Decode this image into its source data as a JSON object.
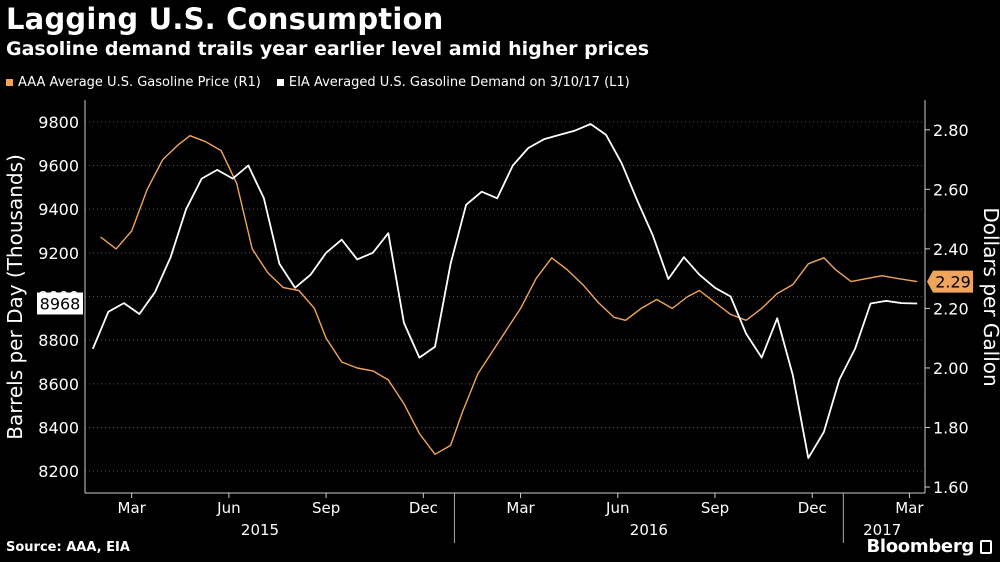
{
  "title": "Lagging U.S. Consumption",
  "subtitle": "Gasoline demand trails year earlier level amid higher prices",
  "legend": [
    {
      "label": "AAA Average U.S. Gasoline Price (R1)",
      "color": "#f0a55b"
    },
    {
      "label": "EIA Averaged U.S. Gasoline Demand on 3/10/17 (L1)",
      "color": "#ffffff"
    }
  ],
  "source": "Source: AAA, EIA",
  "brand": "Bloomberg",
  "chart_data": {
    "type": "line",
    "x_ticks": [
      "Mar",
      "Jun",
      "Sep",
      "Dec",
      "Mar",
      "Jun",
      "Sep",
      "Dec",
      "Mar"
    ],
    "x_years": [
      "2015",
      "2016",
      "2017"
    ],
    "left_axis": {
      "label": "Barrels per Day (Thousands)",
      "ticks": [
        "8200",
        "8400",
        "8600",
        "8800",
        "9000",
        "9200",
        "9400",
        "9600",
        "9800"
      ],
      "range": [
        8100,
        9900
      ]
    },
    "right_axis": {
      "label": "Dollars per Gallon",
      "ticks": [
        "1.60",
        "1.80",
        "2.00",
        "2.20",
        "2.40",
        "2.60",
        "2.80"
      ],
      "range": [
        1.58,
        2.9
      ]
    },
    "grid": true,
    "last_value_labels": {
      "demand": "8968",
      "price": "2.29"
    },
    "series": [
      {
        "name": "AAA Average U.S. Gasoline Price (R1)",
        "axis": "right",
        "color": "#f0a55b",
        "x": [
          2015.09,
          2015.13,
          2015.17,
          2015.21,
          2015.25,
          2015.29,
          2015.32,
          2015.36,
          2015.4,
          2015.44,
          2015.48,
          2015.52,
          2015.56,
          2015.6,
          2015.64,
          2015.67,
          2015.71,
          2015.75,
          2015.79,
          2015.83,
          2015.87,
          2015.91,
          2015.95,
          2015.99,
          2016.02,
          2016.06,
          2016.1,
          2016.13,
          2016.17,
          2016.21,
          2016.25,
          2016.29,
          2016.33,
          2016.37,
          2016.41,
          2016.44,
          2016.48,
          2016.52,
          2016.56,
          2016.6,
          2016.63,
          2016.67,
          2016.71,
          2016.75,
          2016.79,
          2016.83,
          2016.87,
          2016.91,
          2016.95,
          2016.98,
          2017.02,
          2017.06,
          2017.1,
          2017.14,
          2017.19
        ],
        "values": [
          2.44,
          2.4,
          2.46,
          2.6,
          2.7,
          2.75,
          2.78,
          2.76,
          2.73,
          2.62,
          2.4,
          2.32,
          2.27,
          2.26,
          2.2,
          2.1,
          2.02,
          2.0,
          1.99,
          1.96,
          1.88,
          1.78,
          1.71,
          1.74,
          1.85,
          1.98,
          2.06,
          2.12,
          2.2,
          2.3,
          2.37,
          2.33,
          2.28,
          2.22,
          2.17,
          2.16,
          2.2,
          2.23,
          2.2,
          2.24,
          2.26,
          2.22,
          2.18,
          2.16,
          2.2,
          2.25,
          2.28,
          2.35,
          2.37,
          2.33,
          2.29,
          2.3,
          2.31,
          2.3,
          2.29
        ]
      },
      {
        "name": "EIA Averaged U.S. Gasoline Demand on 3/10/17 (L1)",
        "axis": "left",
        "color": "#ffffff",
        "x": [
          2015.07,
          2015.11,
          2015.15,
          2015.19,
          2015.23,
          2015.27,
          2015.31,
          2015.35,
          2015.39,
          2015.43,
          2015.47,
          2015.51,
          2015.55,
          2015.59,
          2015.63,
          2015.67,
          2015.71,
          2015.75,
          2015.79,
          2015.83,
          2015.87,
          2015.91,
          2015.95,
          2015.99,
          2016.03,
          2016.07,
          2016.11,
          2016.15,
          2016.19,
          2016.23,
          2016.27,
          2016.31,
          2016.35,
          2016.39,
          2016.43,
          2016.47,
          2016.51,
          2016.55,
          2016.59,
          2016.63,
          2016.67,
          2016.71,
          2016.75,
          2016.79,
          2016.83,
          2016.87,
          2016.91,
          2016.95,
          2016.99,
          2017.03,
          2017.07,
          2017.11,
          2017.15,
          2017.19
        ],
        "values": [
          8760,
          8930,
          8970,
          8920,
          9020,
          9180,
          9400,
          9540,
          9580,
          9540,
          9600,
          9450,
          9150,
          9040,
          9100,
          9200,
          9260,
          9170,
          9200,
          9290,
          8880,
          8720,
          8770,
          9150,
          9420,
          9480,
          9450,
          9600,
          9680,
          9720,
          9740,
          9760,
          9790,
          9740,
          9610,
          9440,
          9280,
          9080,
          9180,
          9100,
          9040,
          9000,
          8830,
          8720,
          8900,
          8640,
          8260,
          8380,
          8620,
          8760,
          8968,
          8980,
          8970,
          8968
        ]
      }
    ]
  }
}
